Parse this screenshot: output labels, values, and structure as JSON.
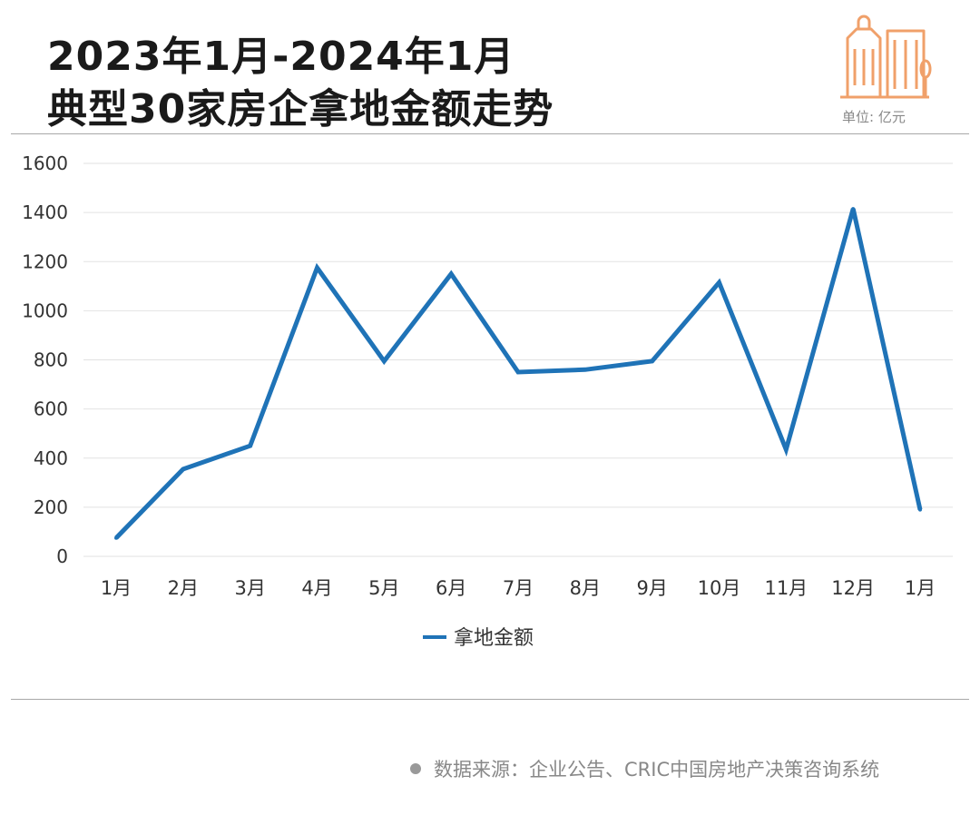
{
  "title": {
    "line1": "2023年1月-2024年1月",
    "line2": "典型30家房企拿地金额走势"
  },
  "unit_label": "单位: 亿元",
  "source_text": "数据来源：企业公告、CRIC中国房地产决策咨询系统",
  "colors": {
    "line": "#1f73b7",
    "icon": "#f0a06a",
    "grid": "#e2e2e2",
    "axis": "#333333"
  },
  "icons": [
    "building-icon",
    "source-dot-icon"
  ],
  "chart_data": {
    "type": "line",
    "categories": [
      "1月",
      "2月",
      "3月",
      "4月",
      "5月",
      "6月",
      "7月",
      "8月",
      "9月",
      "10月",
      "11月",
      "12月",
      "1月"
    ],
    "series": [
      {
        "name": "拿地金额",
        "values": [
          75,
          355,
          450,
          1175,
          795,
          1150,
          750,
          760,
          795,
          1115,
          435,
          1415,
          190
        ]
      }
    ],
    "y_ticks": [
      0,
      200,
      400,
      600,
      800,
      1000,
      1200,
      1400,
      1600
    ],
    "ylim": [
      0,
      1600
    ],
    "grid": true,
    "legend_position": "bottom-center"
  }
}
